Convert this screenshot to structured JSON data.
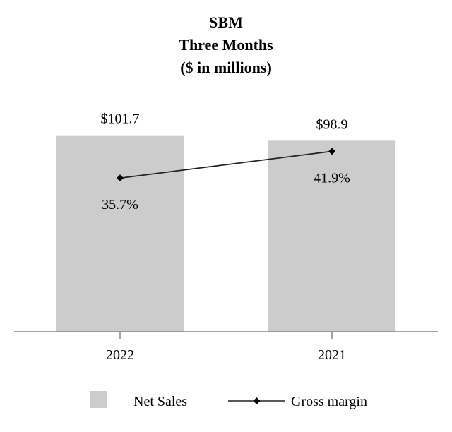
{
  "chart_data": {
    "type": "bar",
    "title_lines": [
      "SBM",
      "Three Months",
      "($ in millions)"
    ],
    "categories": [
      "2022",
      "2021"
    ],
    "series": [
      {
        "name": "Net Sales",
        "kind": "bar",
        "values": [
          101.7,
          98.9
        ],
        "labels": [
          "$101.7",
          "$98.9"
        ],
        "color": "#cccccc"
      },
      {
        "name": "Gross margin",
        "kind": "line",
        "values": [
          35.7,
          41.9
        ],
        "labels": [
          "35.7%",
          "41.9%"
        ],
        "color": "#222222"
      }
    ],
    "bar_ylim": [
      0,
      110
    ],
    "line_ylim": [
      0,
      60
    ],
    "legend": [
      "Net Sales",
      "Gross margin"
    ],
    "legend_position": "bottom",
    "grid": false
  }
}
